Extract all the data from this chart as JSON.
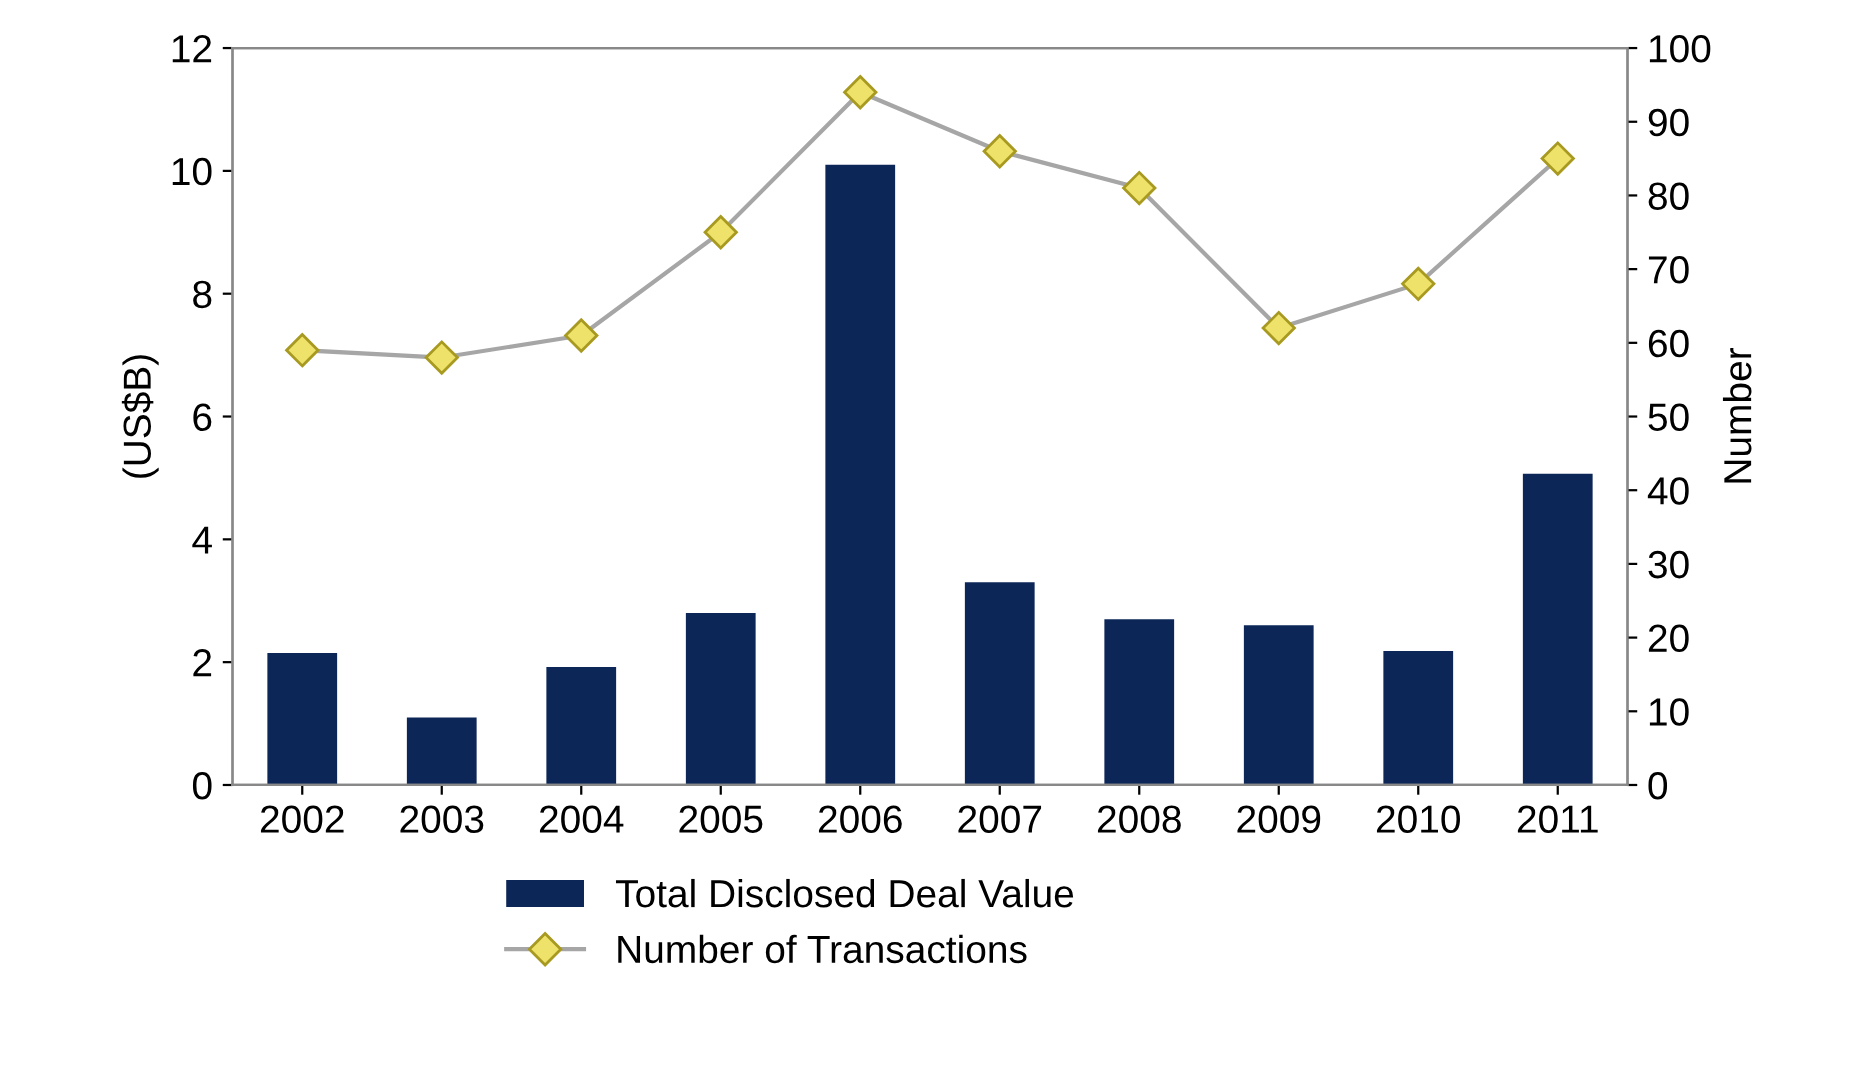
{
  "chart_data": {
    "type": "bar",
    "ylabel": "(US$B)",
    "y2label": "Number",
    "categories": [
      "2002",
      "2003",
      "2004",
      "2005",
      "2006",
      "2007",
      "2008",
      "2009",
      "2010",
      "2011"
    ],
    "series": [
      {
        "name": "Total Disclosed Deal Value",
        "color": "#0c2657",
        "values": [
          2.15,
          1.1,
          1.92,
          2.8,
          10.1,
          3.3,
          2.7,
          2.6,
          2.18,
          5.07
        ]
      },
      {
        "name": "Number of Transactions",
        "type": "line",
        "axis": "y2",
        "color": "#a6a6a6",
        "marker": "diamond",
        "values": [
          59,
          58,
          61,
          75,
          94,
          86,
          81,
          62,
          68,
          85
        ]
      }
    ],
    "ylim": [
      0,
      12
    ],
    "yticks": [
      0,
      2,
      4,
      6,
      8,
      10,
      12
    ],
    "y2lim": [
      0,
      100
    ],
    "y2ticks": [
      0,
      10,
      20,
      30,
      40,
      50,
      60,
      70,
      80,
      90,
      100
    ],
    "legend": "bottom",
    "grid": false
  }
}
